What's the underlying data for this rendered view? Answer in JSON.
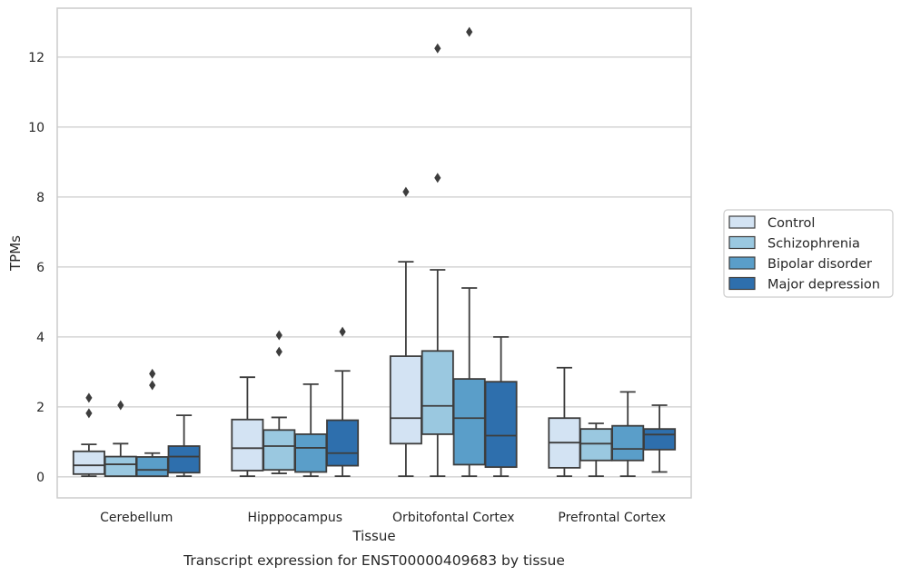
{
  "chart_data": {
    "type": "boxplot",
    "title": "",
    "caption": "Transcript expression for ENST00000409683 by tissue",
    "xlabel": "Tissue",
    "ylabel": "TPMs",
    "ylim": [
      -0.6,
      13.4
    ],
    "yticks": [
      0,
      2,
      4,
      6,
      8,
      10,
      12
    ],
    "grid": "horizontal",
    "legend_position": "right",
    "categories": [
      "Cerebellum",
      "Hipppocampus",
      "Orbitofontal Cortex",
      "Prefrontal Cortex"
    ],
    "series": [
      {
        "name": "Control",
        "color": "#d3e3f3",
        "boxes": [
          {
            "whislo": 0.02,
            "q1": 0.08,
            "med": 0.33,
            "q3": 0.73,
            "whishi": 0.93,
            "fliers": [
              1.82,
              2.26
            ]
          },
          {
            "whislo": 0.02,
            "q1": 0.18,
            "med": 0.82,
            "q3": 1.64,
            "whishi": 2.85,
            "fliers": []
          },
          {
            "whislo": 0.02,
            "q1": 0.95,
            "med": 1.68,
            "q3": 3.45,
            "whishi": 6.15,
            "fliers": [
              8.15
            ]
          },
          {
            "whislo": 0.02,
            "q1": 0.26,
            "med": 0.98,
            "q3": 1.68,
            "whishi": 3.12,
            "fliers": []
          }
        ]
      },
      {
        "name": "Schizophrenia",
        "color": "#9ac8e0",
        "boxes": [
          {
            "whislo": 0.02,
            "q1": 0.02,
            "med": 0.36,
            "q3": 0.58,
            "whishi": 0.95,
            "fliers": [
              2.05
            ]
          },
          {
            "whislo": 0.1,
            "q1": 0.2,
            "med": 0.88,
            "q3": 1.34,
            "whishi": 1.7,
            "fliers": [
              3.58,
              4.05
            ]
          },
          {
            "whislo": 0.02,
            "q1": 1.22,
            "med": 2.03,
            "q3": 3.6,
            "whishi": 5.92,
            "fliers": [
              8.55,
              12.25
            ]
          },
          {
            "whislo": 0.02,
            "q1": 0.47,
            "med": 0.95,
            "q3": 1.37,
            "whishi": 1.53,
            "fliers": []
          }
        ]
      },
      {
        "name": "Bipolar disorder",
        "color": "#5a9ec9",
        "boxes": [
          {
            "whislo": 0.02,
            "q1": 0.02,
            "med": 0.2,
            "q3": 0.57,
            "whishi": 0.68,
            "fliers": [
              2.62,
              2.95
            ]
          },
          {
            "whislo": 0.02,
            "q1": 0.14,
            "med": 0.83,
            "q3": 1.22,
            "whishi": 2.65,
            "fliers": []
          },
          {
            "whislo": 0.02,
            "q1": 0.35,
            "med": 1.68,
            "q3": 2.8,
            "whishi": 5.4,
            "fliers": [
              12.72
            ]
          },
          {
            "whislo": 0.02,
            "q1": 0.47,
            "med": 0.8,
            "q3": 1.46,
            "whishi": 2.43,
            "fliers": []
          }
        ]
      },
      {
        "name": "Major depression",
        "color": "#2e6fad",
        "boxes": [
          {
            "whislo": 0.02,
            "q1": 0.12,
            "med": 0.58,
            "q3": 0.88,
            "whishi": 1.76,
            "fliers": []
          },
          {
            "whislo": 0.02,
            "q1": 0.32,
            "med": 0.68,
            "q3": 1.62,
            "whishi": 3.03,
            "fliers": [
              4.15
            ]
          },
          {
            "whislo": 0.02,
            "q1": 0.28,
            "med": 1.18,
            "q3": 2.72,
            "whishi": 4.0,
            "fliers": []
          },
          {
            "whislo": 0.14,
            "q1": 0.78,
            "med": 1.21,
            "q3": 1.37,
            "whishi": 2.05,
            "fliers": []
          }
        ]
      }
    ]
  }
}
